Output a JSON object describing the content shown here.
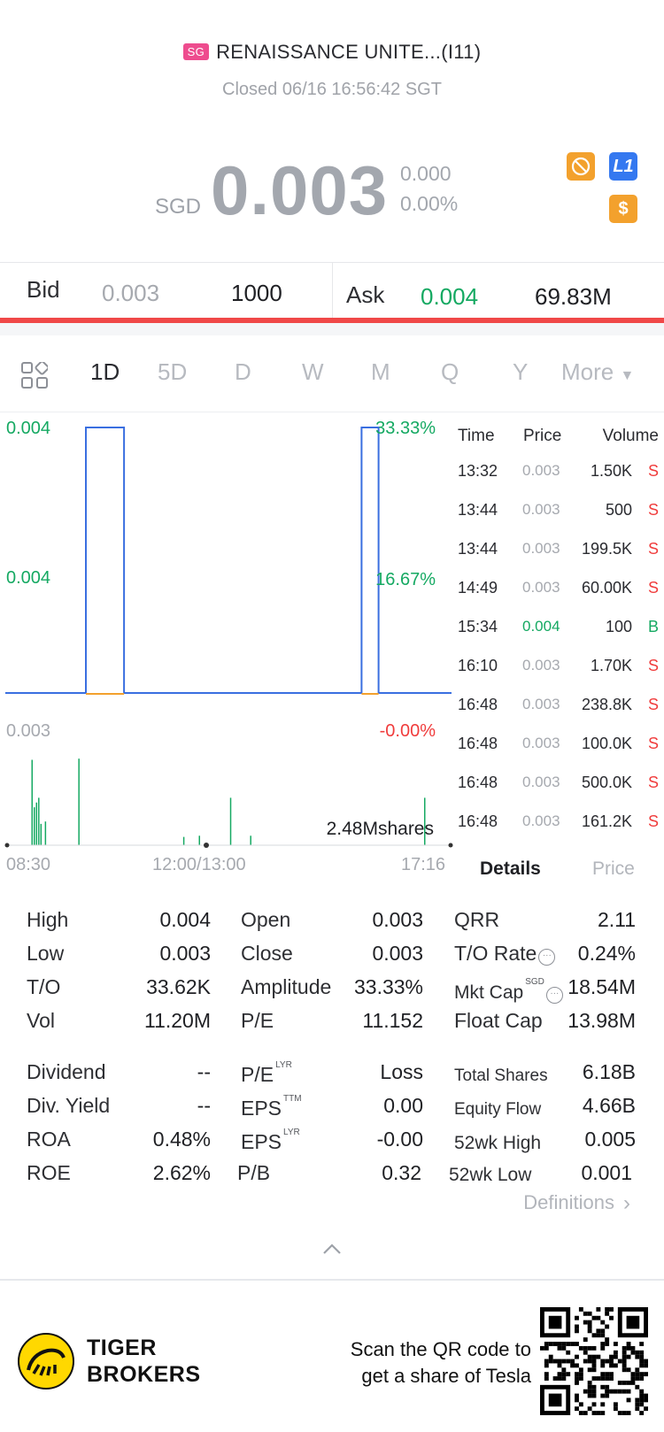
{
  "header": {
    "market_badge": "SG",
    "title": "RENAISSANCE UNITE...(I11)",
    "status": "Closed 06/16 16:56:42 SGT"
  },
  "quote": {
    "currency": "SGD",
    "price": "0.003",
    "change": "0.000",
    "change_pct": "0.00%"
  },
  "badges": {
    "l1": "L1",
    "dollar": "$"
  },
  "bidask": {
    "bid_label": "Bid",
    "bid_price": "0.003",
    "bid_size": "1000",
    "ask_label": "Ask",
    "ask_price": "0.004",
    "ask_size": "69.83M"
  },
  "periods": [
    "1D",
    "5D",
    "D",
    "W",
    "M",
    "Q",
    "Y",
    "More"
  ],
  "active_period": "1D",
  "chart_labels": {
    "y_top": "0.004",
    "y_mid": "0.004",
    "y_bottom": "0.003",
    "pct_top": "33.33%",
    "pct_mid": "16.67%",
    "pct_bottom": "-0.00%",
    "volume_total": "2.48Mshares",
    "x_start": "08:30",
    "x_mid": "12:00/13:00",
    "x_end": "17:16"
  },
  "chart_data": {
    "type": "line",
    "price_segments": [
      {
        "from": "08:30",
        "to": "10:05",
        "price": 0.003
      },
      {
        "from": "10:05",
        "to": "10:50",
        "price": 0.004
      },
      {
        "from": "10:50",
        "to": "15:30",
        "price": 0.003
      },
      {
        "from": "15:30",
        "to": "15:50",
        "price": 0.004
      },
      {
        "from": "15:50",
        "to": "17:16",
        "price": 0.003
      }
    ],
    "volume_bars": [
      {
        "pos": 0.06,
        "h": 0.72
      },
      {
        "pos": 0.065,
        "h": 0.32
      },
      {
        "pos": 0.07,
        "h": 0.36
      },
      {
        "pos": 0.075,
        "h": 0.4
      },
      {
        "pos": 0.08,
        "h": 0.18
      },
      {
        "pos": 0.09,
        "h": 0.2
      },
      {
        "pos": 0.165,
        "h": 0.73
      },
      {
        "pos": 0.4,
        "h": 0.07
      },
      {
        "pos": 0.435,
        "h": 0.08
      },
      {
        "pos": 0.505,
        "h": 0.4
      },
      {
        "pos": 0.55,
        "h": 0.08
      },
      {
        "pos": 0.94,
        "h": 0.4
      }
    ],
    "ylim": [
      0.003,
      0.004
    ]
  },
  "trades": {
    "headers": {
      "time": "Time",
      "price": "Price",
      "volume": "Volume"
    },
    "rows": [
      {
        "time": "13:32",
        "price": "0.003",
        "volume": "1.50K",
        "side": "S"
      },
      {
        "time": "13:44",
        "price": "0.003",
        "volume": "500",
        "side": "S"
      },
      {
        "time": "13:44",
        "price": "0.003",
        "volume": "199.5K",
        "side": "S"
      },
      {
        "time": "14:49",
        "price": "0.003",
        "volume": "60.00K",
        "side": "S"
      },
      {
        "time": "15:34",
        "price": "0.004",
        "volume": "100",
        "side": "B"
      },
      {
        "time": "16:10",
        "price": "0.003",
        "volume": "1.70K",
        "side": "S"
      },
      {
        "time": "16:48",
        "price": "0.003",
        "volume": "238.8K",
        "side": "S"
      },
      {
        "time": "16:48",
        "price": "0.003",
        "volume": "100.0K",
        "side": "S"
      },
      {
        "time": "16:48",
        "price": "0.003",
        "volume": "500.0K",
        "side": "S"
      },
      {
        "time": "16:48",
        "price": "0.003",
        "volume": "161.2K",
        "side": "S"
      }
    ]
  },
  "detail_tabs": {
    "details": "Details",
    "price": "Price"
  },
  "stats": {
    "high_l": "High",
    "high_v": "0.004",
    "low_l": "Low",
    "low_v": "0.003",
    "to_l": "T/O",
    "to_v": "33.62K",
    "vol_l": "Vol",
    "vol_v": "11.20M",
    "open_l": "Open",
    "open_v": "0.003",
    "close_l": "Close",
    "close_v": "0.003",
    "amp_l": "Amplitude",
    "amp_v": "33.33%",
    "pe_l": "P/E",
    "pe_v": "11.152",
    "qrr_l": "QRR",
    "qrr_v": "2.11",
    "torate_l": "T/O Rate",
    "torate_v": "0.24%",
    "mktcap_l": "Mkt Cap",
    "mktcap_sup": "SGD",
    "mktcap_v": "18.54M",
    "float_l": "Float Cap",
    "float_v": "13.98M",
    "div_l": "Dividend",
    "div_v": "--",
    "divy_l": "Div. Yield",
    "divy_v": "--",
    "roa_l": "ROA",
    "roa_v": "0.48%",
    "roe_l": "ROE",
    "roe_v": "2.62%",
    "pelyr_l": "P/E",
    "pelyr_sup": "LYR",
    "pelyr_v": "Loss",
    "epsttm_l": "EPS",
    "epsttm_sup": "TTM",
    "epsttm_v": "0.00",
    "epslyr_l": "EPS",
    "epslyr_sup": "LYR",
    "epslyr_v": "-0.00",
    "pb_l": "P/B",
    "pb_v": "0.32",
    "tshares_l": "Total Shares",
    "tshares_v": "6.18B",
    "eqflow_l": "Equity Flow",
    "eqflow_v": "4.66B",
    "hi52_l": "52wk High",
    "hi52_v": "0.005",
    "lo52_l": "52wk Low",
    "lo52_v": "0.001"
  },
  "definitions_link": "Definitions",
  "footer": {
    "brand_line1": "TIGER",
    "brand_line2": "BROKERS",
    "scan_line1": "Scan the QR code to",
    "scan_line2": "get a share of Tesla"
  },
  "colors": {
    "up": "#15a962",
    "down": "#f03c3c",
    "line": "#3a6fe0",
    "accent_red": "#f04848"
  }
}
